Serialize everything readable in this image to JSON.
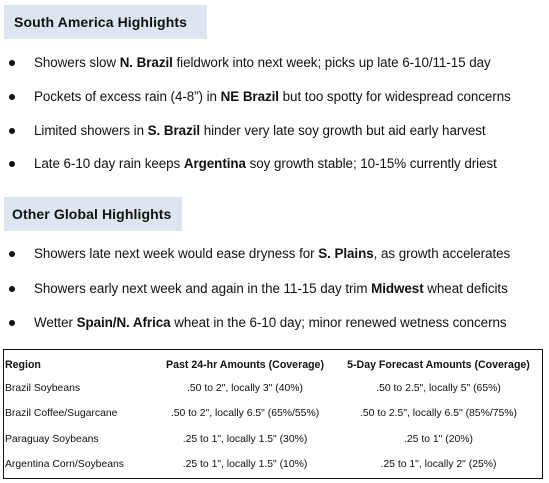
{
  "south_america": {
    "title": "South America Highlights",
    "bullets": [
      {
        "pre": "Showers slow ",
        "bold": "N. Brazil",
        "post": " fieldwork into next week; picks up late 6-10/11-15 day"
      },
      {
        "pre": "Pockets of excess rain (4-8”) in ",
        "bold": "NE Brazil",
        "post": " but too spotty for widespread concerns"
      },
      {
        "pre": "Limited showers in ",
        "bold": "S. Brazil",
        "post": " hinder very late soy growth but aid early harvest"
      },
      {
        "pre": "Late 6-10 day rain keeps ",
        "bold": "Argentina",
        "post": " soy growth stable; 10-15% currently driest"
      }
    ]
  },
  "other_global": {
    "title": "Other Global Highlights",
    "bullets": [
      {
        "pre": "Showers late next week would ease dryness for ",
        "bold": "S. Plains",
        "post": ", as growth accelerates"
      },
      {
        "pre": "Showers early next week and again in the 11-15 day trim ",
        "bold": "Midwest",
        "post": " wheat deficits"
      },
      {
        "pre": "Wetter ",
        "bold": "Spain/N. Africa",
        "post": " wheat in the 6-10 day; minor renewed wetness concerns"
      }
    ]
  },
  "table": {
    "headers": [
      "Region",
      "Past 24-hr Amounts (Coverage)",
      "5-Day Forecast Amounts (Coverage)"
    ],
    "rows": [
      [
        "Brazil Soybeans",
        ".50 to 2\", locally 3\" (40%)",
        ".50 to 2.5\", locally 5\" (65%)"
      ],
      [
        "Brazil Coffee/Sugarcane",
        ".50 to 2\", locally 6.5\" (65%/55%)",
        ".50 to 2.5\", locally 6.5\" (85%/75%)"
      ],
      [
        "Paraguay Soybeans",
        ".25 to 1\", locally 1.5\" (30%)",
        ".25 to 1\" (20%)"
      ],
      [
        "Argentina Corn/Soybeans",
        ".25 to 1\", locally 1.5\" (10%)",
        ".25 to 1\", locally 2\" (25%)"
      ]
    ]
  }
}
